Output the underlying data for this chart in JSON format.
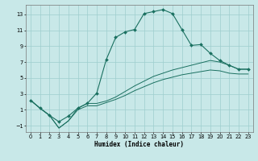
{
  "xlabel": "Humidex (Indice chaleur)",
  "bg_color": "#c8e8e8",
  "grid_color": "#9ecece",
  "line_color": "#1a7060",
  "xlim": [
    -0.5,
    23.5
  ],
  "ylim": [
    -1.8,
    14.2
  ],
  "xticks": [
    0,
    1,
    2,
    3,
    4,
    5,
    6,
    7,
    8,
    9,
    10,
    11,
    12,
    13,
    14,
    15,
    16,
    17,
    18,
    19,
    20,
    21,
    22,
    23
  ],
  "yticks": [
    -1,
    1,
    3,
    5,
    7,
    9,
    11,
    13
  ],
  "curve1_x": [
    0,
    1,
    2,
    3,
    4,
    5,
    6,
    7,
    8,
    9,
    10,
    11,
    12,
    13,
    14,
    15,
    16,
    17,
    18,
    19,
    20,
    21,
    22,
    23
  ],
  "curve1_y": [
    2.2,
    1.2,
    0.3,
    -0.5,
    0.2,
    1.2,
    1.8,
    3.1,
    7.3,
    10.1,
    10.8,
    11.1,
    13.1,
    13.35,
    13.6,
    13.1,
    11.1,
    9.1,
    9.2,
    8.1,
    7.2,
    6.6,
    6.1,
    6.1
  ],
  "curve2_x": [
    0,
    1,
    2,
    3,
    4,
    5,
    6,
    7,
    8,
    9,
    10,
    11,
    12,
    13,
    14,
    15,
    16,
    17,
    18,
    19,
    20,
    21,
    22,
    23
  ],
  "curve2_y": [
    2.2,
    1.2,
    0.3,
    -1.3,
    -0.4,
    1.2,
    1.8,
    1.8,
    2.1,
    2.6,
    3.3,
    4.0,
    4.6,
    5.2,
    5.6,
    6.0,
    6.3,
    6.6,
    6.9,
    7.2,
    7.0,
    6.6,
    6.1,
    6.1
  ],
  "curve3_x": [
    0,
    1,
    2,
    3,
    4,
    5,
    6,
    7,
    8,
    9,
    10,
    11,
    12,
    13,
    14,
    15,
    16,
    17,
    18,
    19,
    20,
    21,
    22,
    23
  ],
  "curve3_y": [
    2.2,
    1.2,
    0.3,
    -1.3,
    -0.4,
    1.0,
    1.5,
    1.5,
    1.9,
    2.3,
    2.8,
    3.4,
    3.9,
    4.4,
    4.8,
    5.1,
    5.4,
    5.6,
    5.8,
    6.0,
    5.9,
    5.6,
    5.5,
    5.5
  ]
}
